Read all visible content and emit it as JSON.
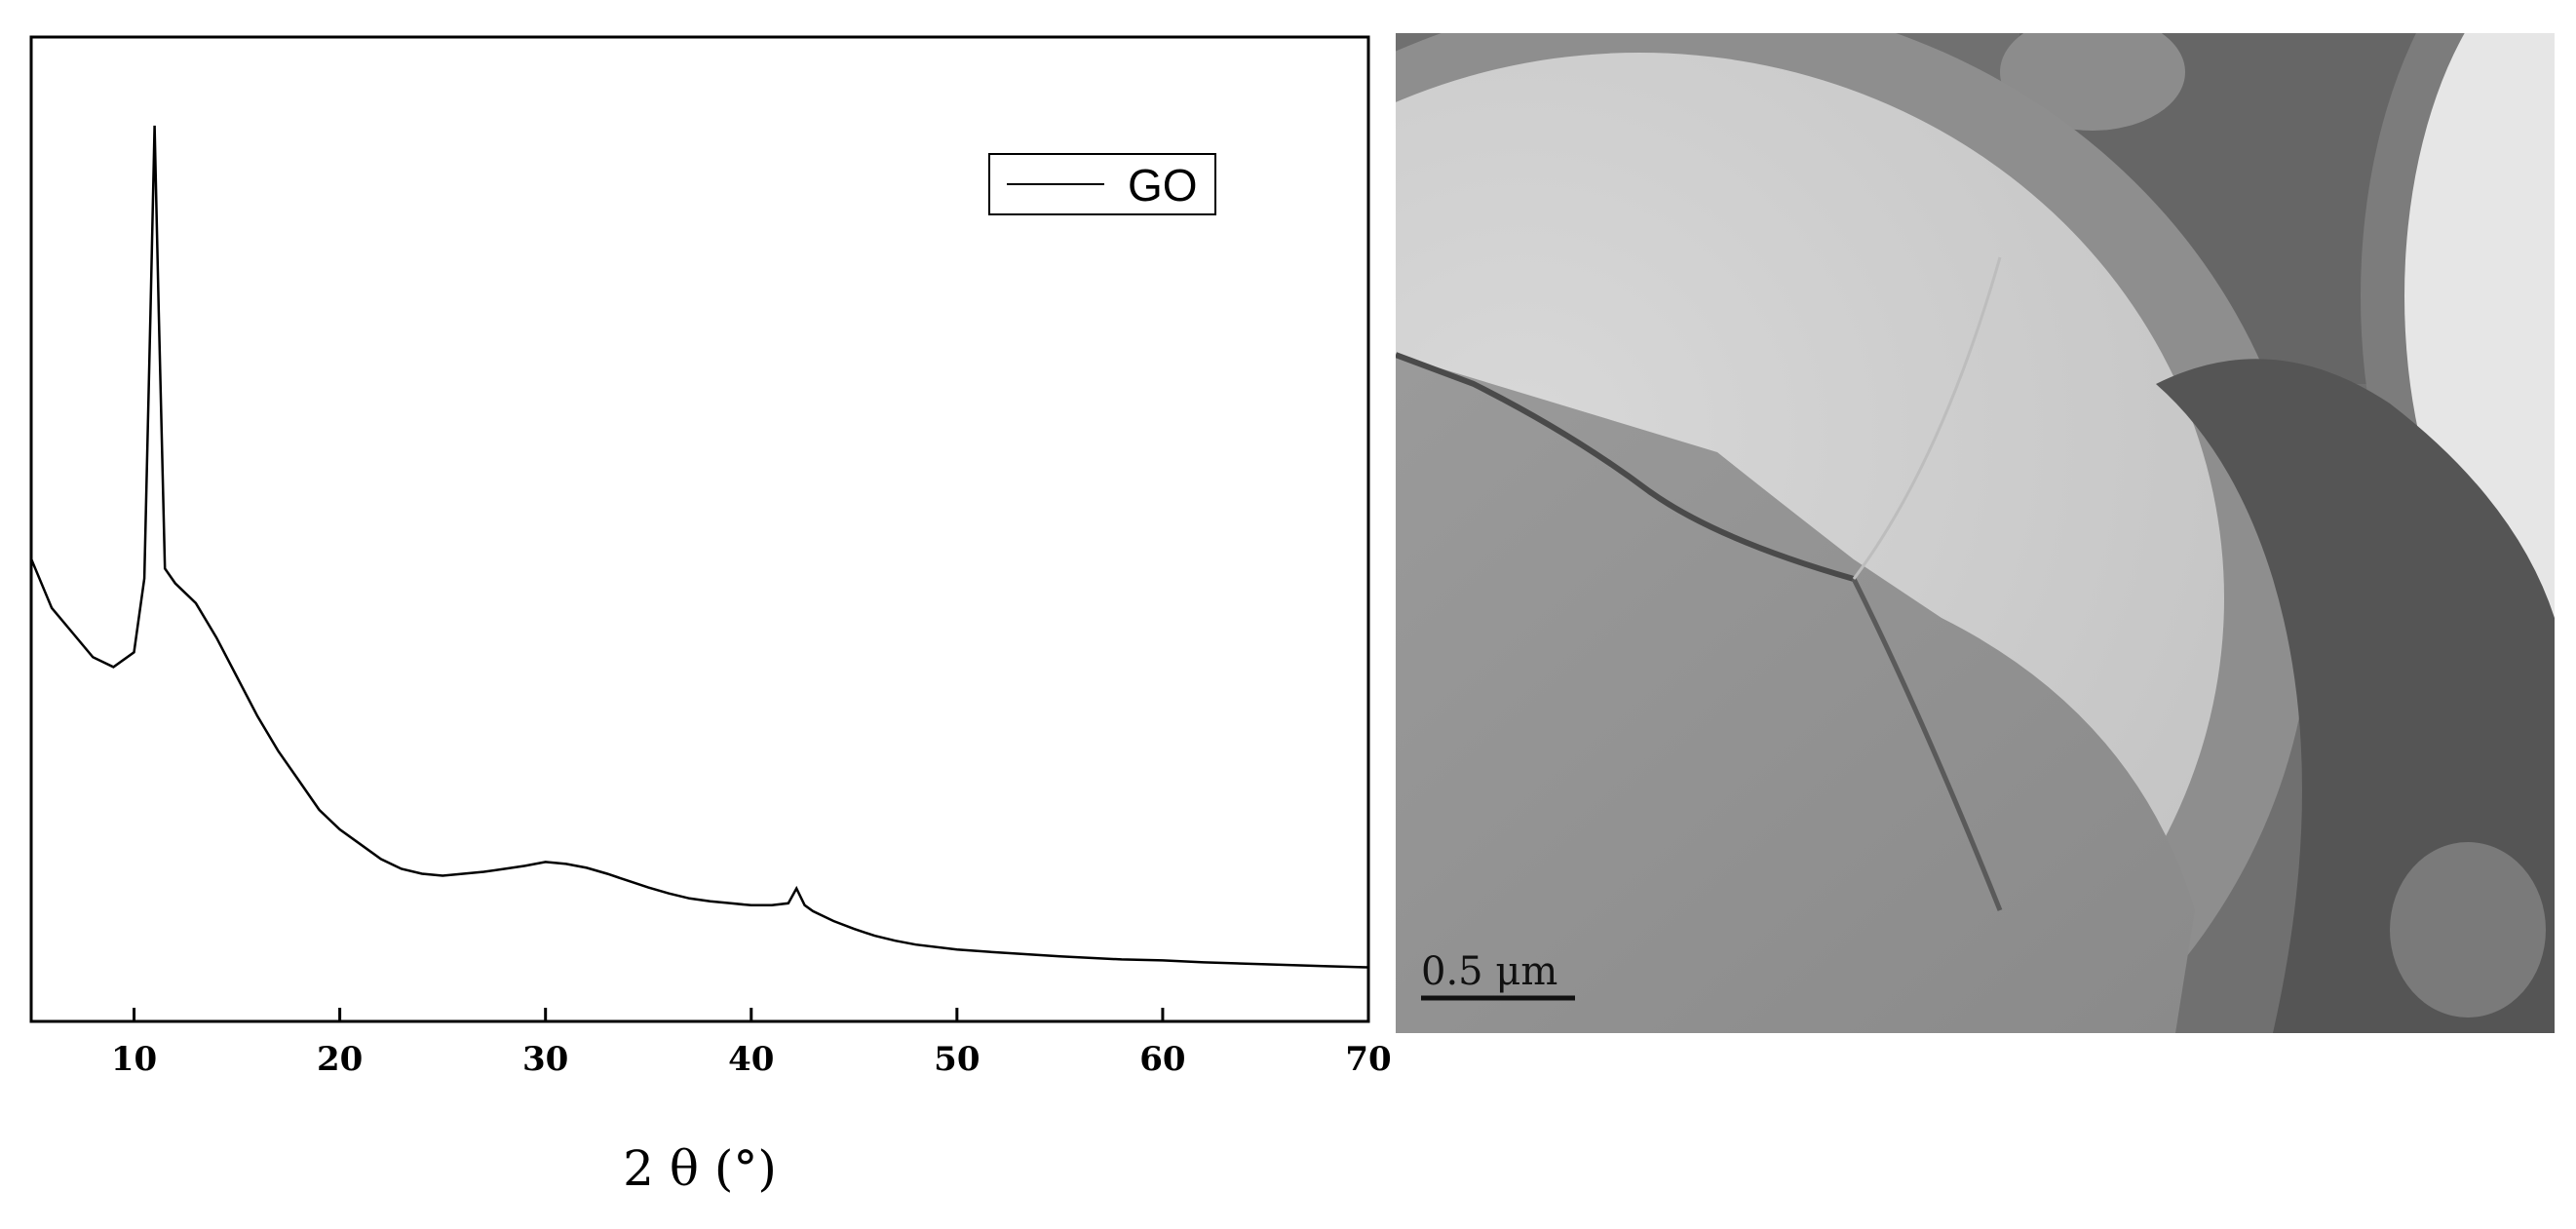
{
  "chart_data": {
    "type": "line",
    "xlabel": "2 θ (°)",
    "ylabel": "",
    "xlim": [
      5,
      70
    ],
    "xticks": [
      10,
      20,
      30,
      40,
      50,
      60,
      70
    ],
    "yticks_shown": false,
    "grid": false,
    "legend_position": "top-right",
    "series": [
      {
        "name": "GO",
        "color": "#000000",
        "x": [
          5,
          6,
          7,
          8,
          9,
          10,
          10.5,
          10.8,
          11.0,
          11.2,
          11.5,
          12,
          13,
          14,
          15,
          16,
          17,
          18,
          19,
          20,
          21,
          22,
          23,
          24,
          25,
          26,
          27,
          28,
          29,
          30,
          31,
          32,
          33,
          34,
          35,
          36,
          37,
          38,
          39,
          40,
          41,
          41.8,
          42.2,
          42.6,
          43,
          44,
          45,
          46,
          47,
          48,
          50,
          52,
          55,
          58,
          60,
          62,
          65,
          68,
          70
        ],
        "y": [
          0.47,
          0.42,
          0.395,
          0.37,
          0.36,
          0.375,
          0.45,
          0.72,
          0.91,
          0.72,
          0.46,
          0.445,
          0.425,
          0.39,
          0.35,
          0.31,
          0.275,
          0.245,
          0.215,
          0.195,
          0.18,
          0.165,
          0.155,
          0.15,
          0.148,
          0.15,
          0.152,
          0.155,
          0.158,
          0.162,
          0.16,
          0.156,
          0.15,
          0.143,
          0.136,
          0.13,
          0.125,
          0.122,
          0.12,
          0.118,
          0.118,
          0.12,
          0.135,
          0.118,
          0.112,
          0.102,
          0.094,
          0.087,
          0.082,
          0.078,
          0.073,
          0.07,
          0.066,
          0.063,
          0.062,
          0.06,
          0.058,
          0.056,
          0.055
        ]
      }
    ]
  },
  "scale_bar": {
    "label": "0.5 μm"
  },
  "colors": {
    "axis": "#000000",
    "tem_background": "#6e6e6e"
  }
}
